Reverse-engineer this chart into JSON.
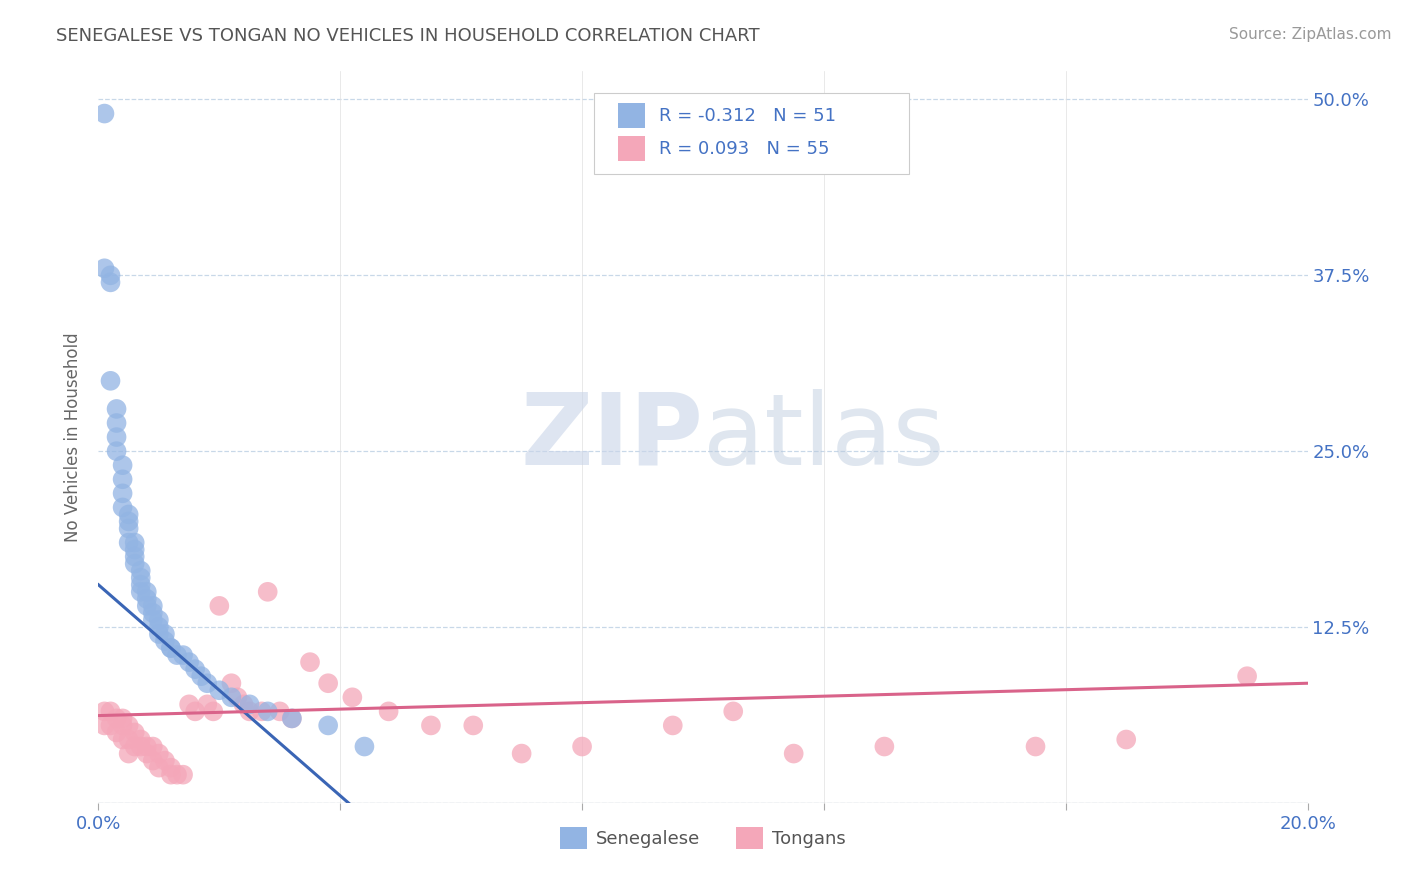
{
  "title": "SENEGALESE VS TONGAN NO VEHICLES IN HOUSEHOLD CORRELATION CHART",
  "source": "Source: ZipAtlas.com",
  "ylabel": "No Vehicles in Household",
  "xlim": [
    0.0,
    0.2
  ],
  "ylim": [
    0.0,
    0.52
  ],
  "xtick_pos": [
    0.0,
    0.04,
    0.08,
    0.12,
    0.16,
    0.2
  ],
  "xtick_labels": [
    "0.0%",
    "",
    "",
    "",
    "",
    "20.0%"
  ],
  "ytick_pos": [
    0.0,
    0.125,
    0.25,
    0.375,
    0.5
  ],
  "ytick_labels": [
    "",
    "12.5%",
    "25.0%",
    "37.5%",
    "50.0%"
  ],
  "sen_color": "#92b4e3",
  "ton_color": "#f4a7b9",
  "sen_line_color": "#3a65b5",
  "ton_line_color": "#d9638a",
  "watermark_zip": "ZIP",
  "watermark_atlas": "atlas",
  "R_sen": -0.312,
  "N_sen": 51,
  "R_ton": 0.093,
  "N_ton": 55,
  "sen_x": [
    0.001,
    0.001,
    0.002,
    0.002,
    0.002,
    0.003,
    0.003,
    0.003,
    0.003,
    0.004,
    0.004,
    0.004,
    0.004,
    0.005,
    0.005,
    0.005,
    0.005,
    0.006,
    0.006,
    0.006,
    0.006,
    0.007,
    0.007,
    0.007,
    0.007,
    0.008,
    0.008,
    0.008,
    0.009,
    0.009,
    0.009,
    0.01,
    0.01,
    0.01,
    0.011,
    0.011,
    0.012,
    0.012,
    0.013,
    0.014,
    0.015,
    0.016,
    0.017,
    0.018,
    0.02,
    0.022,
    0.025,
    0.028,
    0.032,
    0.038,
    0.044
  ],
  "sen_y": [
    0.49,
    0.38,
    0.375,
    0.37,
    0.3,
    0.28,
    0.27,
    0.26,
    0.25,
    0.24,
    0.23,
    0.22,
    0.21,
    0.205,
    0.2,
    0.195,
    0.185,
    0.185,
    0.18,
    0.175,
    0.17,
    0.165,
    0.16,
    0.155,
    0.15,
    0.15,
    0.145,
    0.14,
    0.14,
    0.135,
    0.13,
    0.13,
    0.125,
    0.12,
    0.12,
    0.115,
    0.11,
    0.11,
    0.105,
    0.105,
    0.1,
    0.095,
    0.09,
    0.085,
    0.08,
    0.075,
    0.07,
    0.065,
    0.06,
    0.055,
    0.04
  ],
  "ton_x": [
    0.001,
    0.001,
    0.002,
    0.002,
    0.003,
    0.003,
    0.004,
    0.004,
    0.004,
    0.005,
    0.005,
    0.005,
    0.006,
    0.006,
    0.007,
    0.007,
    0.008,
    0.008,
    0.009,
    0.009,
    0.01,
    0.01,
    0.011,
    0.012,
    0.012,
    0.013,
    0.014,
    0.015,
    0.016,
    0.018,
    0.019,
    0.02,
    0.022,
    0.023,
    0.024,
    0.025,
    0.027,
    0.028,
    0.03,
    0.032,
    0.035,
    0.038,
    0.042,
    0.048,
    0.055,
    0.062,
    0.07,
    0.08,
    0.095,
    0.105,
    0.115,
    0.13,
    0.155,
    0.17,
    0.19
  ],
  "ton_y": [
    0.065,
    0.055,
    0.065,
    0.055,
    0.06,
    0.05,
    0.06,
    0.055,
    0.045,
    0.055,
    0.045,
    0.035,
    0.05,
    0.04,
    0.045,
    0.04,
    0.04,
    0.035,
    0.04,
    0.03,
    0.035,
    0.025,
    0.03,
    0.025,
    0.02,
    0.02,
    0.02,
    0.07,
    0.065,
    0.07,
    0.065,
    0.14,
    0.085,
    0.075,
    0.07,
    0.065,
    0.065,
    0.15,
    0.065,
    0.06,
    0.1,
    0.085,
    0.075,
    0.065,
    0.055,
    0.055,
    0.035,
    0.04,
    0.055,
    0.065,
    0.035,
    0.04,
    0.04,
    0.045,
    0.09
  ],
  "sen_trend_x": [
    0.0,
    0.044
  ],
  "sen_trend_y": [
    0.155,
    -0.01
  ],
  "ton_trend_x": [
    0.0,
    0.2
  ],
  "ton_trend_y": [
    0.062,
    0.085
  ]
}
